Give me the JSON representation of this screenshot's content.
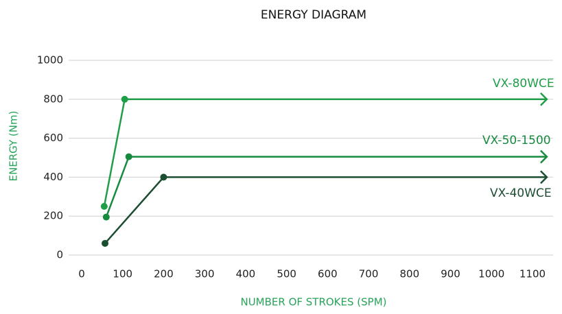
{
  "chart_data": {
    "type": "line",
    "title": "ENERGY DIAGRAM",
    "x_label": "NUMBER OF STROKES (SPM)",
    "y_label": "ENERGY (Nm)",
    "xlim": [
      0,
      1100
    ],
    "xticks": [
      0,
      100,
      200,
      300,
      400,
      500,
      600,
      700,
      800,
      900,
      1000,
      1100
    ],
    "ylim": [
      0,
      1000
    ],
    "yticks": [
      0,
      200,
      400,
      600,
      800,
      1000
    ],
    "grid": true,
    "series": [
      {
        "name": "VX-80WCE",
        "color": "#1f9e48",
        "x": [
          55,
          105,
          1135
        ],
        "values": [
          250,
          800,
          800
        ]
      },
      {
        "name": "VX-50-1500",
        "color": "#168a3e",
        "x": [
          60,
          115,
          1135
        ],
        "values": [
          195,
          505,
          505
        ]
      },
      {
        "name": "VX-40WCE",
        "color": "#1b4d30",
        "x": [
          57,
          200,
          1135
        ],
        "values": [
          60,
          400,
          400
        ]
      }
    ]
  }
}
